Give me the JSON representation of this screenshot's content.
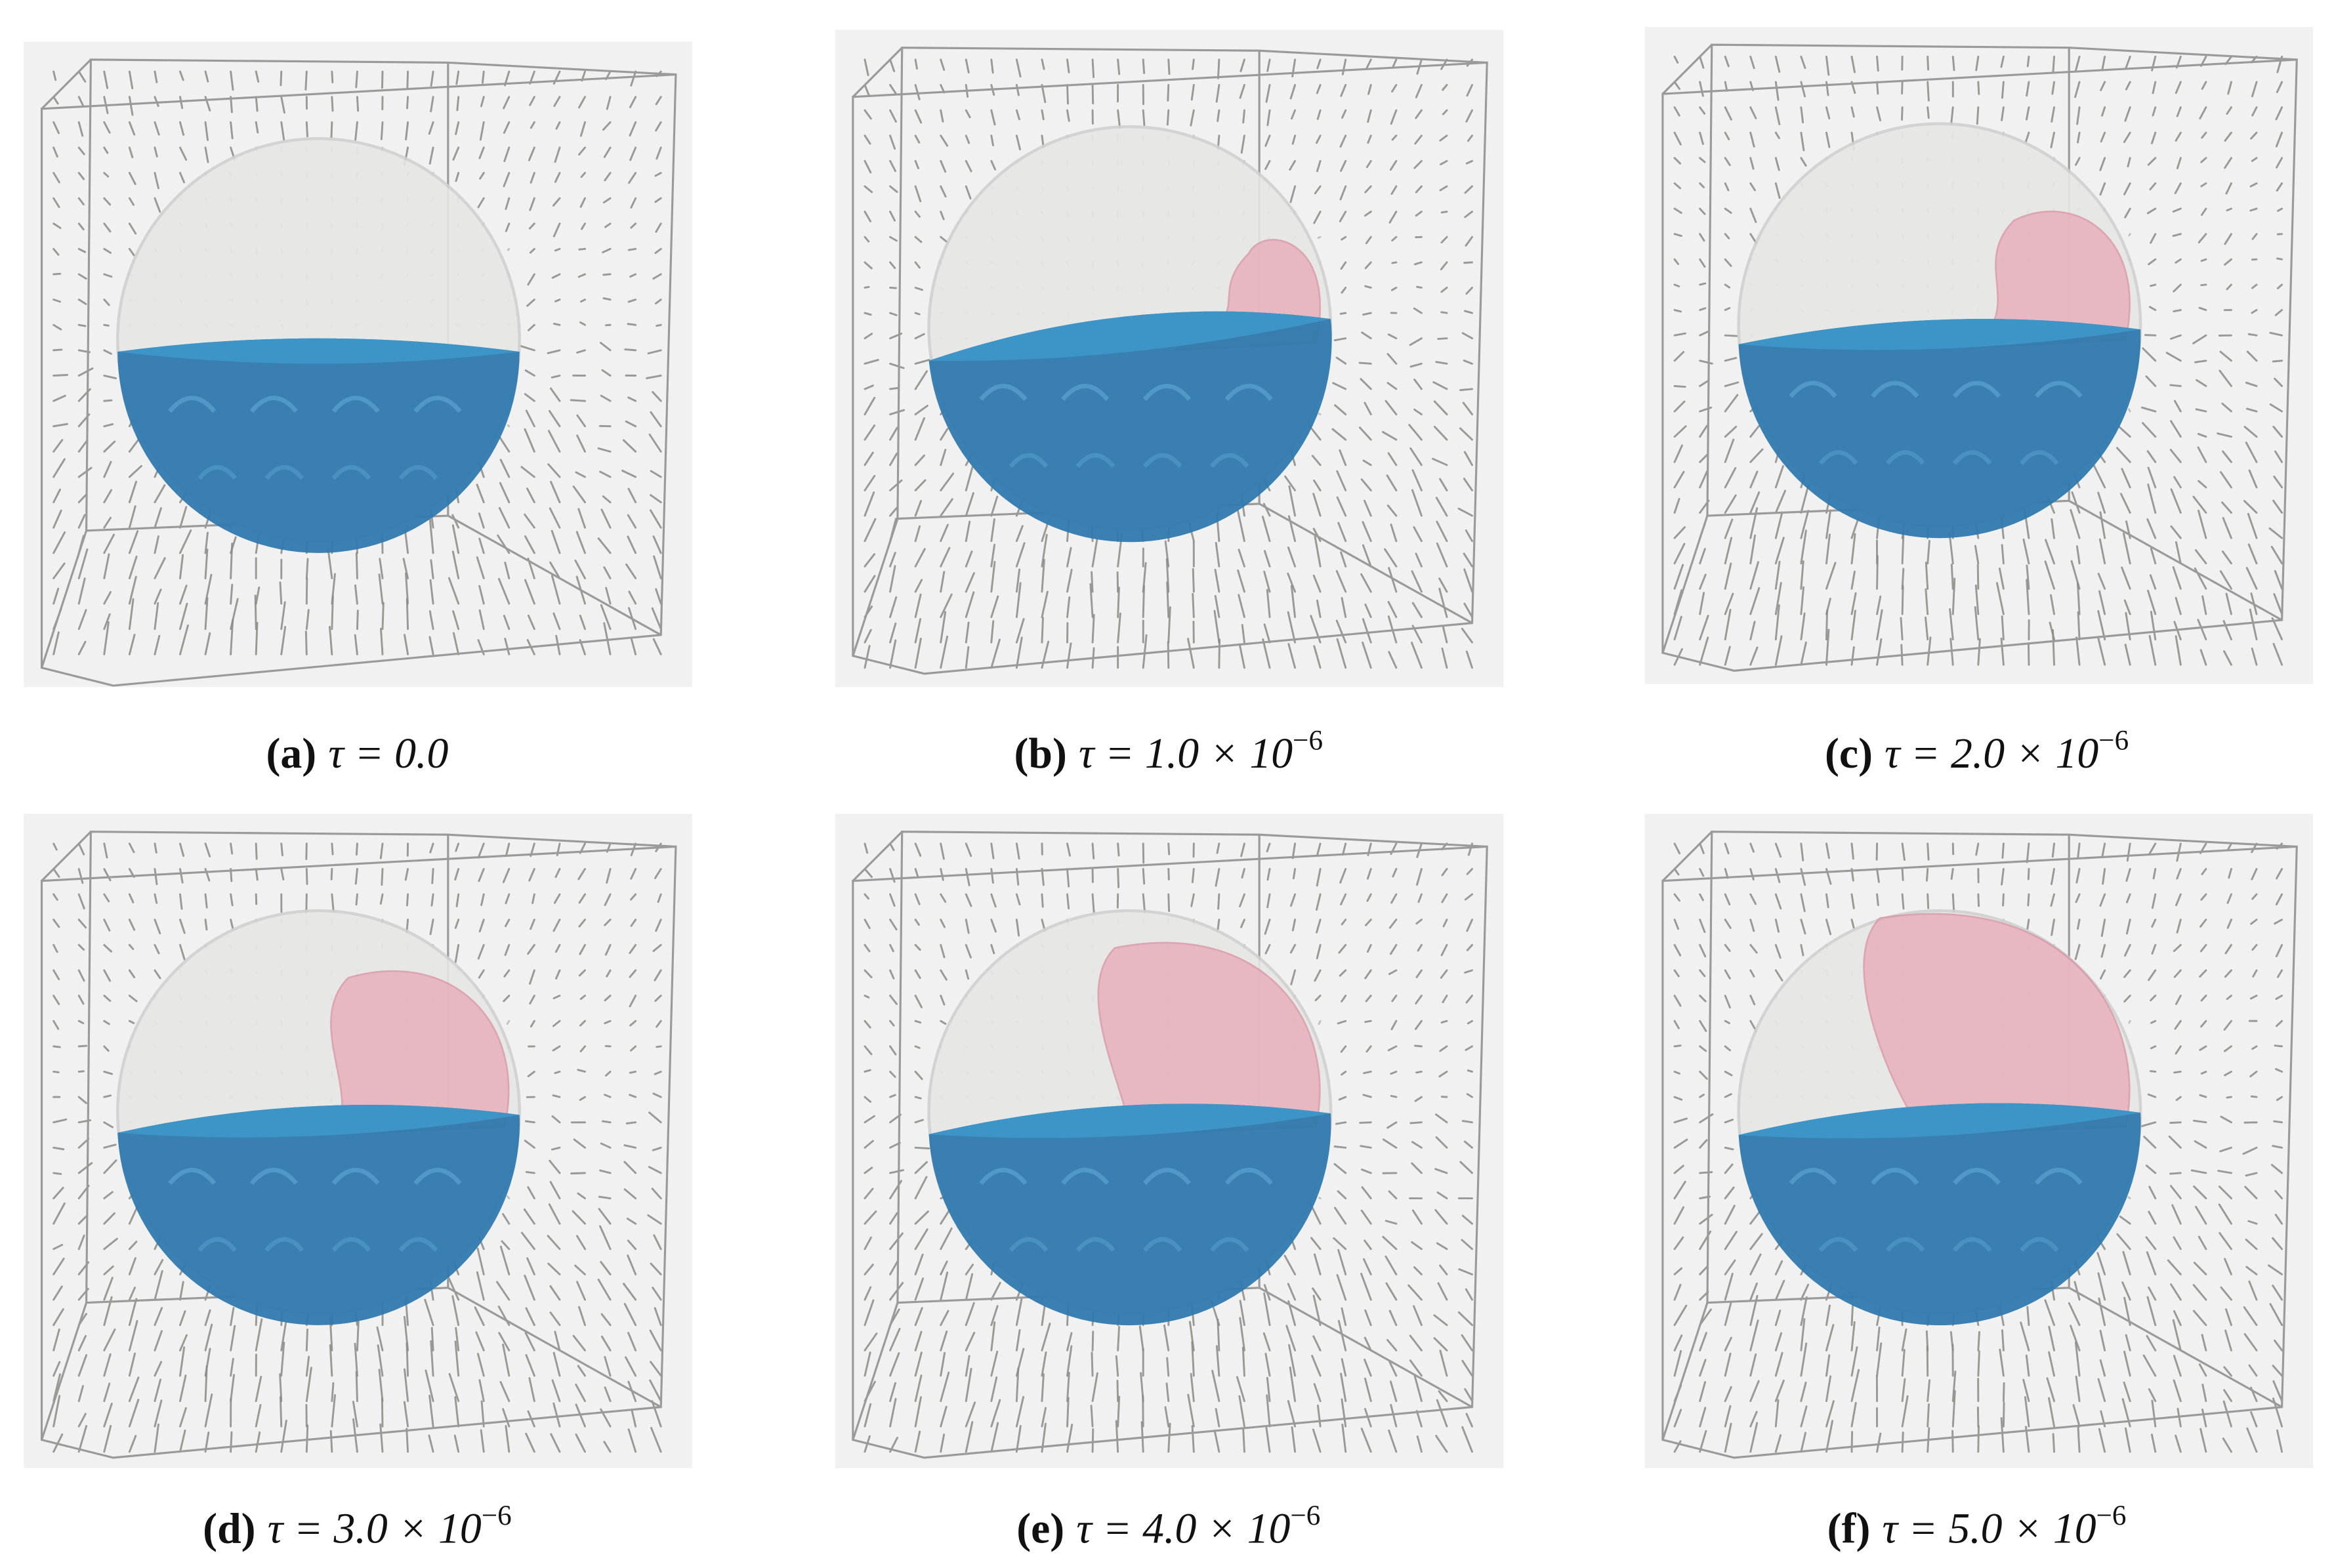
{
  "panels": [
    {
      "label": "(a)",
      "caption": "τ = 0.0"
    },
    {
      "label": "(b)",
      "caption": "τ = 1.0 × 10",
      "exponent": "−6"
    },
    {
      "label": "(c)",
      "caption": "τ = 2.0 × 10",
      "exponent": "−6"
    },
    {
      "label": "(d)",
      "caption": "τ = 3.0 × 10",
      "exponent": "−6"
    },
    {
      "label": "(e)",
      "caption": "τ = 4.0 × 10",
      "exponent": "−6"
    },
    {
      "label": "(f)",
      "caption": "τ = 5.0 × 10",
      "exponent": "−6"
    }
  ]
}
